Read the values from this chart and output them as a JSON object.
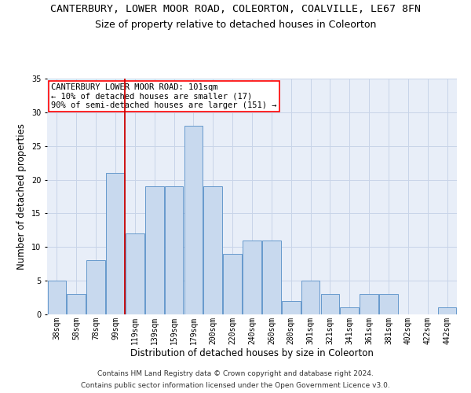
{
  "title_line1": "CANTERBURY, LOWER MOOR ROAD, COLEORTON, COALVILLE, LE67 8FN",
  "title_line2": "Size of property relative to detached houses in Coleorton",
  "xlabel": "Distribution of detached houses by size in Coleorton",
  "ylabel": "Number of detached properties",
  "categories": [
    "38sqm",
    "58sqm",
    "78sqm",
    "99sqm",
    "119sqm",
    "139sqm",
    "159sqm",
    "179sqm",
    "200sqm",
    "220sqm",
    "240sqm",
    "260sqm",
    "280sqm",
    "301sqm",
    "321sqm",
    "341sqm",
    "361sqm",
    "381sqm",
    "402sqm",
    "422sqm",
    "442sqm"
  ],
  "values": [
    5,
    3,
    8,
    21,
    12,
    19,
    19,
    28,
    19,
    9,
    11,
    11,
    2,
    5,
    3,
    1,
    3,
    3,
    0,
    0,
    1
  ],
  "bar_color": "#c8d9ee",
  "bar_edge_color": "#6699cc",
  "grid_color": "#c8d4e8",
  "background_color": "#e8eef8",
  "vline_color": "#cc0000",
  "vline_x": 3.5,
  "annotation_text_line1": "CANTERBURY LOWER MOOR ROAD: 101sqm",
  "annotation_text_line2": "← 10% of detached houses are smaller (17)",
  "annotation_text_line3": "90% of semi-detached houses are larger (151) →",
  "footer_line1": "Contains HM Land Registry data © Crown copyright and database right 2024.",
  "footer_line2": "Contains public sector information licensed under the Open Government Licence v3.0.",
  "ylim": [
    0,
    35
  ],
  "yticks": [
    0,
    5,
    10,
    15,
    20,
    25,
    30,
    35
  ],
  "title1_fontsize": 9.5,
  "title2_fontsize": 9,
  "axis_label_fontsize": 8.5,
  "tick_fontsize": 7,
  "annotation_fontsize": 7.5,
  "footer_fontsize": 6.5
}
